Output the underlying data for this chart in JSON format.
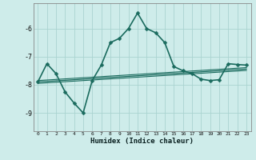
{
  "xlabel": "Humidex (Indice chaleur)",
  "bg_color": "#ceecea",
  "grid_color": "#aad4d0",
  "line_color": "#1a6b5e",
  "xlim": [
    -0.5,
    23.5
  ],
  "ylim": [
    -9.65,
    -5.1
  ],
  "yticks": [
    -9,
    -8,
    -7,
    -6
  ],
  "xticks": [
    0,
    1,
    2,
    3,
    4,
    5,
    6,
    7,
    8,
    9,
    10,
    11,
    12,
    13,
    14,
    15,
    16,
    17,
    18,
    19,
    20,
    21,
    22,
    23
  ],
  "line1_x": [
    0,
    1,
    2,
    3,
    4,
    5,
    6,
    7,
    8,
    9,
    10,
    11,
    12,
    13,
    14,
    15,
    16,
    17,
    18,
    19,
    20,
    21,
    22,
    23
  ],
  "line1_y": [
    -7.9,
    -7.25,
    -7.6,
    -8.25,
    -8.65,
    -9.0,
    -7.85,
    -7.3,
    -6.5,
    -6.35,
    -6.0,
    -5.45,
    -6.0,
    -6.15,
    -6.5,
    -7.35,
    -7.5,
    -7.6,
    -7.8,
    -7.85,
    -7.82,
    -7.25,
    -7.28,
    -7.3
  ],
  "line2_x": [
    0,
    1,
    2,
    3,
    4,
    5,
    6,
    7,
    8,
    9,
    10,
    11,
    12,
    13,
    14,
    15,
    16,
    17,
    18,
    19,
    20,
    21,
    22,
    23
  ],
  "line2_y": [
    -7.9,
    -7.88,
    -7.86,
    -7.84,
    -7.82,
    -7.8,
    -7.78,
    -7.76,
    -7.74,
    -7.72,
    -7.7,
    -7.68,
    -7.66,
    -7.64,
    -7.62,
    -7.6,
    -7.58,
    -7.56,
    -7.54,
    -7.52,
    -7.5,
    -7.48,
    -7.46,
    -7.44
  ],
  "line3_x": [
    0,
    1,
    2,
    3,
    4,
    5,
    6,
    7,
    8,
    9,
    10,
    11,
    12,
    13,
    14,
    15,
    16,
    17,
    18,
    19,
    20,
    21,
    22,
    23
  ],
  "line3_y": [
    -7.95,
    -7.93,
    -7.91,
    -7.89,
    -7.87,
    -7.85,
    -7.83,
    -7.81,
    -7.79,
    -7.77,
    -7.75,
    -7.73,
    -7.71,
    -7.69,
    -7.67,
    -7.65,
    -7.63,
    -7.61,
    -7.59,
    -7.57,
    -7.55,
    -7.53,
    -7.51,
    -7.49
  ],
  "line4_x": [
    0,
    1,
    2,
    3,
    4,
    5,
    6,
    7,
    8,
    9,
    10,
    11,
    12,
    13,
    14,
    15,
    16,
    17,
    18,
    19,
    20,
    21,
    22,
    23
  ],
  "line4_y": [
    -7.85,
    -7.83,
    -7.81,
    -7.79,
    -7.77,
    -7.75,
    -7.73,
    -7.71,
    -7.69,
    -7.67,
    -7.65,
    -7.63,
    -7.61,
    -7.59,
    -7.57,
    -7.55,
    -7.53,
    -7.51,
    -7.49,
    -7.47,
    -7.45,
    -7.43,
    -7.41,
    -7.39
  ]
}
